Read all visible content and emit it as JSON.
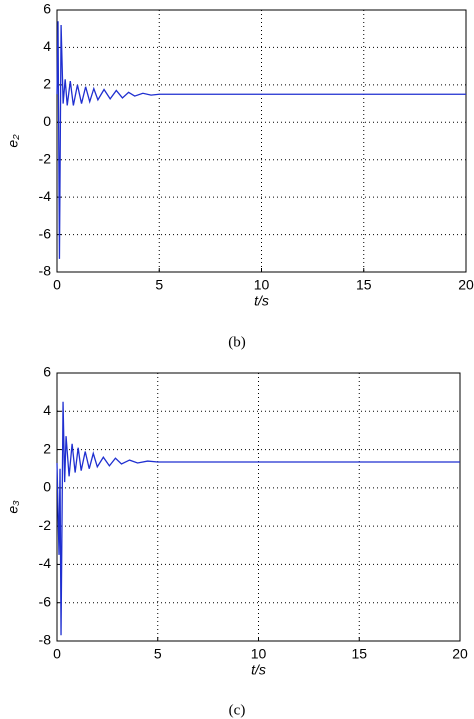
{
  "chart_data": [
    {
      "type": "line",
      "ylabel": "e₂",
      "xlabel": "t/s",
      "caption": "(b)",
      "xlim": [
        0,
        20
      ],
      "ylim": [
        -8,
        6
      ],
      "xticks": [
        0,
        5,
        10,
        15,
        20
      ],
      "yticks": [
        -8,
        -6,
        -4,
        -2,
        0,
        2,
        4,
        6
      ],
      "grid": true,
      "series": [
        {
          "color": "#1f2fd0",
          "x": [
            0,
            0.05,
            0.12,
            0.2,
            0.3,
            0.4,
            0.5,
            0.65,
            0.8,
            1.0,
            1.2,
            1.4,
            1.6,
            1.8,
            2.0,
            2.3,
            2.6,
            2.9,
            3.2,
            3.5,
            3.8,
            4.2,
            4.6,
            5,
            20
          ],
          "values": [
            1.5,
            5.4,
            -7.3,
            5.2,
            1,
            2.3,
            0.9,
            2.2,
            0.9,
            2.0,
            1.0,
            1.9,
            1.1,
            1.8,
            1.2,
            1.75,
            1.25,
            1.7,
            1.3,
            1.6,
            1.4,
            1.55,
            1.45,
            1.5,
            1.5
          ]
        }
      ]
    },
    {
      "type": "line",
      "ylabel": "e₃",
      "xlabel": "t/s",
      "caption": "(c)",
      "xlim": [
        0,
        20
      ],
      "ylim": [
        -8,
        6
      ],
      "xticks": [
        0,
        5,
        10,
        15,
        20
      ],
      "yticks": [
        -8,
        -6,
        -4,
        -2,
        0,
        2,
        4,
        6
      ],
      "grid": true,
      "series": [
        {
          "color": "#1f2fd0",
          "x": [
            0,
            0.1,
            0.15,
            0.2,
            0.3,
            0.38,
            0.45,
            0.6,
            0.75,
            0.9,
            1.05,
            1.2,
            1.4,
            1.6,
            1.8,
            2.0,
            2.3,
            2.6,
            2.9,
            3.2,
            3.6,
            4,
            4.5,
            5,
            20
          ],
          "values": [
            1.3,
            -3.5,
            1,
            -7.7,
            4.5,
            0.3,
            2.7,
            0.6,
            2.3,
            0.8,
            2.1,
            0.9,
            1.9,
            1.0,
            1.8,
            1.1,
            1.6,
            1.15,
            1.55,
            1.25,
            1.45,
            1.3,
            1.4,
            1.35,
            1.35
          ]
        }
      ]
    }
  ]
}
